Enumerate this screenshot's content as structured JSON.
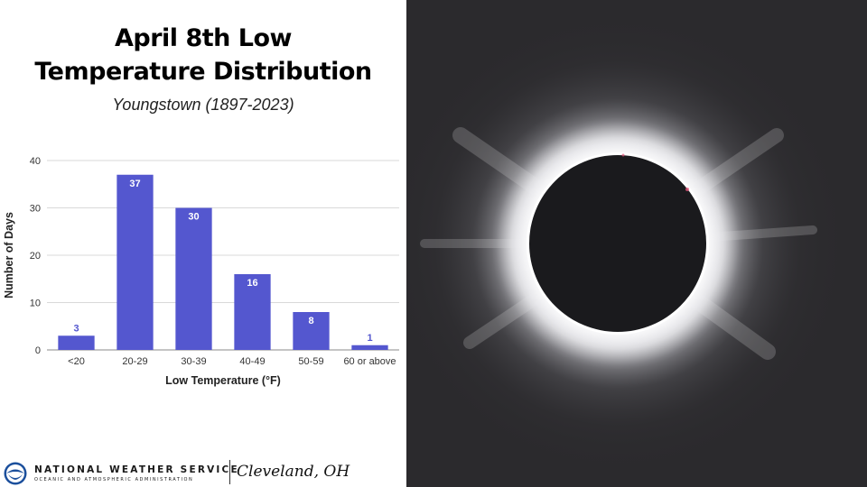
{
  "title_lines": [
    "April 8th Low",
    "Temperature Distribution"
  ],
  "subtitle": "Youngstown (1897-2023)",
  "colors": {
    "bar": "#5457cf",
    "grid": "#d9d9d9",
    "eclipse_background": "#2b2a2d",
    "moon": "#1a1a1d"
  },
  "chart_data": {
    "type": "bar",
    "categories": [
      "<20",
      "20-29",
      "30-39",
      "40-49",
      "50-59",
      "60 or above"
    ],
    "values": [
      3,
      37,
      30,
      16,
      8,
      1
    ],
    "data_labels": [
      "3",
      "37",
      "30",
      "16",
      "8",
      "1"
    ],
    "xlabel": "Low Temperature (°F)",
    "ylabel": "Number of Days",
    "ylim": [
      0,
      40
    ],
    "yticks": [
      0,
      10,
      20,
      30,
      40
    ],
    "grid": true,
    "legend": "none"
  },
  "footer": {
    "org_name": "NATIONAL WEATHER SERVICE",
    "org_sub": "OCEANIC AND ATMOSPHERIC ADMINISTRATION",
    "office": "Cleveland, OH",
    "logo_icon": "noaa-logo-icon"
  },
  "photo": {
    "subject": "eclipse-photo"
  }
}
